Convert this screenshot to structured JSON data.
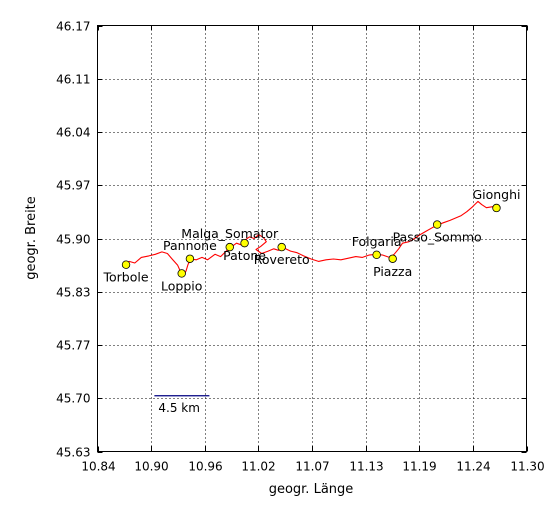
{
  "chart_data": {
    "type": "line",
    "title": "",
    "xlabel": "geogr. Länge",
    "ylabel": "geogr. Breite",
    "xlim": [
      10.84,
      11.3
    ],
    "ylim": [
      45.63,
      46.17
    ],
    "x_ticks": [
      "10.84",
      "10.90",
      "10.96",
      "11.02",
      "11.07",
      "11.13",
      "11.19",
      "11.24",
      "11.30"
    ],
    "y_ticks": [
      "45.63",
      "45.70",
      "45.77",
      "45.83",
      "45.90",
      "45.97",
      "46.04",
      "46.11",
      "46.17"
    ],
    "grid": true,
    "route_color": "#ff0000",
    "marker_color": "#ffff00",
    "scale_bar": {
      "label": "4.5 km",
      "x_start": 10.901,
      "x_end": 10.96,
      "y": 45.7,
      "color": "#000080"
    },
    "series": [
      {
        "points": [
          [
            10.868,
            45.866
          ],
          [
            10.874,
            45.871
          ],
          [
            10.88,
            45.869
          ],
          [
            10.887,
            45.876
          ],
          [
            10.895,
            45.878
          ],
          [
            10.902,
            45.88
          ],
          [
            10.909,
            45.883
          ],
          [
            10.915,
            45.881
          ],
          [
            10.92,
            45.874
          ],
          [
            10.926,
            45.866
          ],
          [
            10.929,
            45.858
          ],
          [
            10.932,
            45.853
          ],
          [
            10.935,
            45.859
          ],
          [
            10.937,
            45.867
          ],
          [
            10.94,
            45.874
          ],
          [
            10.946,
            45.873
          ],
          [
            10.952,
            45.876
          ],
          [
            10.958,
            45.873
          ],
          [
            10.966,
            45.88
          ],
          [
            10.972,
            45.877
          ],
          [
            10.978,
            45.884
          ],
          [
            10.983,
            45.889
          ],
          [
            10.989,
            45.894
          ],
          [
            10.994,
            45.892
          ],
          [
            10.998,
            45.898
          ],
          [
            11.003,
            45.902
          ],
          [
            11.008,
            45.9
          ],
          [
            11.013,
            45.905
          ],
          [
            11.018,
            45.901
          ],
          [
            11.021,
            45.896
          ],
          [
            11.015,
            45.89
          ],
          [
            11.01,
            45.886
          ],
          [
            11.016,
            45.881
          ],
          [
            11.023,
            45.884
          ],
          [
            11.029,
            45.887
          ],
          [
            11.034,
            45.885
          ],
          [
            11.04,
            45.888
          ],
          [
            11.047,
            45.884
          ],
          [
            11.054,
            45.882
          ],
          [
            11.061,
            45.878
          ],
          [
            11.069,
            45.874
          ],
          [
            11.077,
            45.871
          ],
          [
            11.085,
            45.873
          ],
          [
            11.093,
            45.874
          ],
          [
            11.101,
            45.873
          ],
          [
            11.109,
            45.875
          ],
          [
            11.117,
            45.877
          ],
          [
            11.124,
            45.876
          ],
          [
            11.131,
            45.879
          ],
          [
            11.139,
            45.88
          ],
          [
            11.146,
            45.879
          ],
          [
            11.153,
            45.876
          ],
          [
            11.158,
            45.88
          ],
          [
            11.163,
            45.887
          ],
          [
            11.167,
            45.894
          ],
          [
            11.174,
            45.896
          ],
          [
            11.18,
            45.9
          ],
          [
            11.186,
            45.905
          ],
          [
            11.192,
            45.909
          ],
          [
            11.198,
            45.913
          ],
          [
            11.204,
            45.917
          ],
          [
            11.211,
            45.92
          ],
          [
            11.218,
            45.923
          ],
          [
            11.224,
            45.926
          ],
          [
            11.23,
            45.929
          ],
          [
            11.236,
            45.934
          ],
          [
            11.242,
            45.94
          ],
          [
            11.248,
            45.947
          ],
          [
            11.252,
            45.943
          ],
          [
            11.257,
            45.939
          ],
          [
            11.262,
            45.94
          ],
          [
            11.268,
            45.941
          ]
        ]
      }
    ],
    "places": [
      {
        "name": "Torbole",
        "lon": 10.8706,
        "lat": 45.8668,
        "label_side": "below"
      },
      {
        "name": "Pannone",
        "lon": 10.9391,
        "lat": 45.8743,
        "label_side": "above"
      },
      {
        "name": "Loppio",
        "lon": 10.9303,
        "lat": 45.8557,
        "label_side": "below"
      },
      {
        "name": "Malga_Somator",
        "lon": 10.9818,
        "lat": 45.8891,
        "label_side": "above"
      },
      {
        "name": "Patone",
        "lon": 10.9977,
        "lat": 45.8941,
        "label_side": "below"
      },
      {
        "name": "Rovereto",
        "lon": 11.0375,
        "lat": 45.8891,
        "label_side": "below"
      },
      {
        "name": "Folgaria",
        "lon": 11.1393,
        "lat": 45.8793,
        "label_side": "above"
      },
      {
        "name": "Piazza",
        "lon": 11.1565,
        "lat": 45.8743,
        "label_side": "below"
      },
      {
        "name": "Passo_Sommo",
        "lon": 11.2042,
        "lat": 45.9177,
        "label_side": "below"
      },
      {
        "name": "Gionghi",
        "lon": 11.2678,
        "lat": 45.9387,
        "label_side": "above"
      }
    ]
  }
}
